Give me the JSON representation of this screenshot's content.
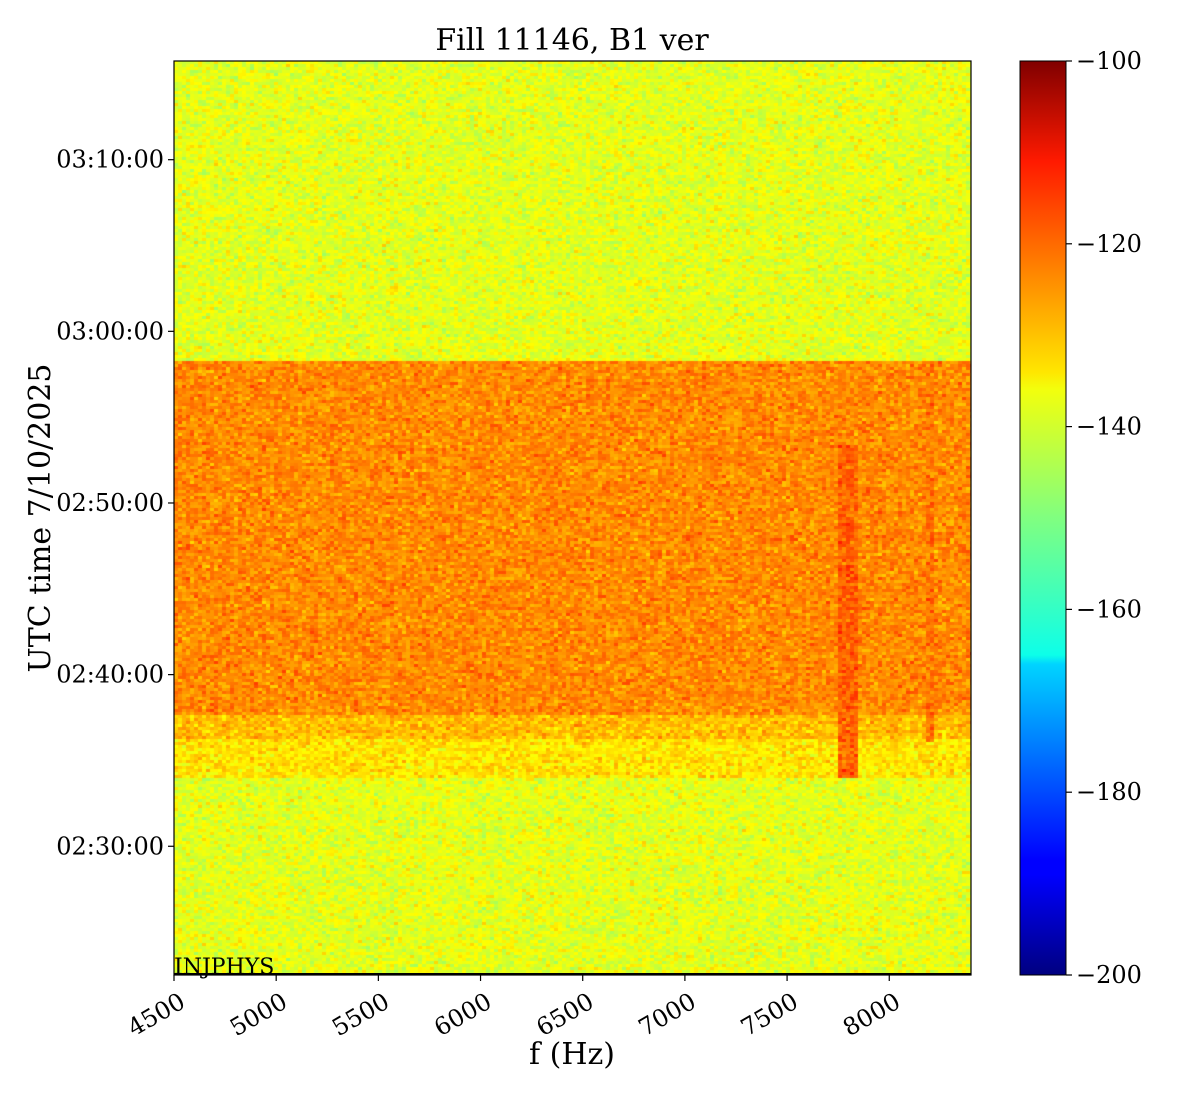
{
  "chart_data": {
    "type": "heatmap",
    "title": "Fill 11146, B1 ver",
    "xlabel": "f (Hz)",
    "ylabel": "UTC time 7/10/2025",
    "xlim": [
      4500,
      8400
    ],
    "xticks": [
      4500,
      5000,
      5500,
      6000,
      6500,
      7000,
      7500,
      8000
    ],
    "yrange": [
      "02:22:30",
      "03:15:45"
    ],
    "yticks": [
      "02:30:00",
      "02:40:00",
      "02:50:00",
      "03:00:00",
      "03:10:00"
    ],
    "colormap": "jet",
    "colorbar": {
      "range": [
        -200,
        -100
      ],
      "ticks": [
        -100,
        -120,
        -140,
        -160,
        -180,
        -200
      ],
      "tick_labels": [
        "−100",
        "−120",
        "−140",
        "−160",
        "−180",
        "−200"
      ]
    },
    "annotation": "INJPHYS",
    "regions": [
      {
        "time_start": "02:22:30",
        "time_end": "02:33:55",
        "level_db": -140,
        "note": "background"
      },
      {
        "time_start": "02:33:55",
        "time_end": "02:36:10",
        "level_db": -135
      },
      {
        "time_start": "02:36:10",
        "time_end": "02:37:40",
        "level_db": -131
      },
      {
        "time_start": "02:37:40",
        "time_end": "02:58:15",
        "level_db": -126
      },
      {
        "time_start": "02:58:15",
        "time_end": "03:15:45",
        "level_db": -140,
        "note": "background"
      }
    ],
    "lines": [
      {
        "f_start": 7750,
        "f_end": 7850,
        "time_start": "02:33:55",
        "time_end": "02:53:20",
        "level_db": -122
      },
      {
        "f_start": 8180,
        "f_end": 8210,
        "time_start": "02:36:00",
        "time_end": "02:58:15",
        "level_db": -124
      }
    ],
    "grid": false
  }
}
